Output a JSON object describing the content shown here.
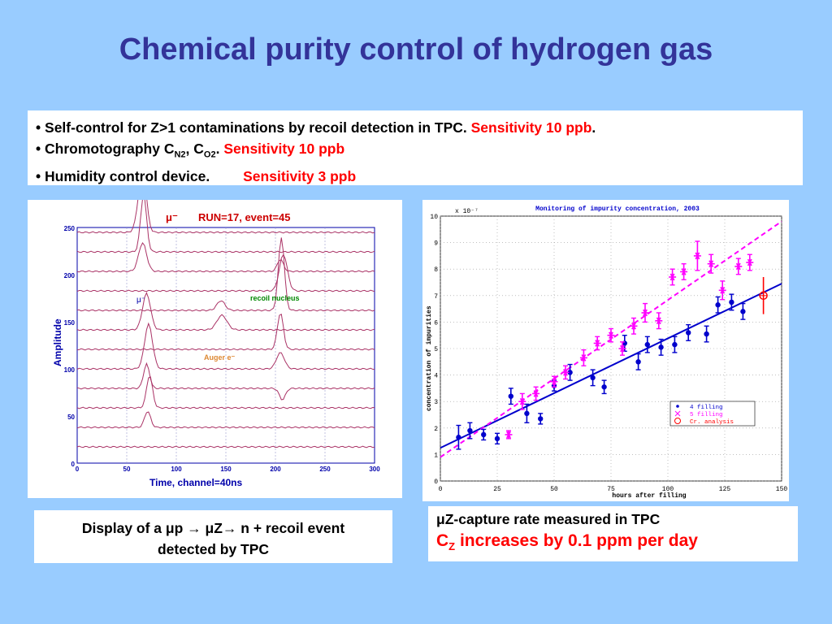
{
  "title": "Chemical purity control of hydrogen gas",
  "bullets": [
    {
      "prefix": "•",
      "text": "Self-control for  Z>1 contaminations by recoil detection in TPC.",
      "sensitivity": "Sensitivity  10 ppb",
      "suffix": "."
    },
    {
      "prefix": "•",
      "text_a": "Chromotography  C",
      "sub_a": "N2",
      "text_b": ", C",
      "sub_b": "O2",
      "text_c": ".",
      "sensitivity": "Sensitivity 10 ppb"
    },
    {
      "prefix": "•",
      "text": " Humidity control device.",
      "sensitivity": "Sensitivity  3 ppb"
    }
  ],
  "left_figure": {
    "header_symbol": "μ⁻",
    "header_run": "RUN=17, event=45",
    "label_mu": "μ⁻",
    "label_recoil": "recoil nucleus",
    "label_auger": "Auger e⁻",
    "ylabel": "Amplitude",
    "xlabel": "Time, channel=40ns",
    "x_ticks": [
      "0",
      "50",
      "100",
      "150",
      "200",
      "250",
      "300"
    ],
    "y_ticks": [
      "0",
      "50",
      "100",
      "150",
      "200",
      "250"
    ]
  },
  "left_caption": {
    "line1": "Display of a μp → μZ→ n + recoil event",
    "line2": "detected by TPC"
  },
  "chart_data": {
    "type": "scatter",
    "title": "Monitoring of impurity concentration, 2003",
    "xlabel": "hours after filling",
    "ylabel": "concentration of impurities",
    "y_multiplier": "x 10⁻⁷",
    "xlim": [
      0,
      150
    ],
    "ylim": [
      0,
      10
    ],
    "x_ticks": [
      0,
      25,
      50,
      75,
      100,
      125,
      150
    ],
    "y_ticks": [
      0,
      1,
      2,
      3,
      4,
      5,
      6,
      7,
      8,
      9,
      10
    ],
    "grid": true,
    "legend_position": "bottom-right",
    "series": [
      {
        "name": "4 filling",
        "color": "#0000cc",
        "marker": "dot",
        "points": [
          [
            8,
            1.65
          ],
          [
            13,
            1.9
          ],
          [
            19,
            1.75
          ],
          [
            25,
            1.6
          ],
          [
            31,
            3.2
          ],
          [
            38,
            2.55
          ],
          [
            44,
            2.35
          ],
          [
            50,
            3.6
          ],
          [
            57,
            4.1
          ],
          [
            67,
            3.9
          ],
          [
            72,
            3.55
          ],
          [
            81,
            5.2
          ],
          [
            87,
            4.5
          ],
          [
            91,
            5.15
          ],
          [
            97,
            5.05
          ],
          [
            103,
            5.15
          ],
          [
            109,
            5.6
          ],
          [
            117,
            5.55
          ],
          [
            122,
            6.65
          ],
          [
            128,
            6.75
          ],
          [
            133,
            6.4
          ]
        ],
        "errors": [
          0.45,
          0.3,
          0.2,
          0.2,
          0.3,
          0.35,
          0.2,
          0.2,
          0.3,
          0.3,
          0.25,
          0.3,
          0.3,
          0.3,
          0.3,
          0.3,
          0.3,
          0.3,
          0.3,
          0.3,
          0.3
        ]
      },
      {
        "name": "5 filling",
        "color": "#ff00ff",
        "marker": "star",
        "points": [
          [
            30,
            1.75
          ],
          [
            36,
            3.0
          ],
          [
            42,
            3.3
          ],
          [
            50,
            3.75
          ],
          [
            55,
            4.1
          ],
          [
            63,
            4.65
          ],
          [
            69,
            5.2
          ],
          [
            75,
            5.5
          ],
          [
            80,
            5.0
          ],
          [
            85,
            5.85
          ],
          [
            90,
            6.35
          ],
          [
            96,
            6.05
          ],
          [
            102,
            7.7
          ],
          [
            107,
            7.9
          ],
          [
            113,
            8.5
          ],
          [
            119,
            8.2
          ],
          [
            124,
            7.2
          ],
          [
            131,
            8.1
          ],
          [
            136,
            8.25
          ]
        ],
        "errors": [
          0.15,
          0.3,
          0.25,
          0.2,
          0.25,
          0.3,
          0.25,
          0.25,
          0.25,
          0.3,
          0.35,
          0.3,
          0.3,
          0.3,
          0.55,
          0.35,
          0.35,
          0.3,
          0.3
        ]
      },
      {
        "name": "Cr. analysis",
        "color": "#ff0000",
        "marker": "circle",
        "points": [
          [
            142,
            7.0
          ]
        ],
        "errors": [
          0.7
        ]
      }
    ],
    "fit_lines": [
      {
        "series": "4 filling",
        "color": "#0000cc",
        "style": "solid",
        "from": [
          0,
          1.25
        ],
        "to": [
          150,
          7.45
        ]
      },
      {
        "series": "5 filling",
        "color": "#ff00ff",
        "style": "dashed",
        "from": [
          0,
          0.9
        ],
        "to": [
          150,
          9.8
        ]
      }
    ]
  },
  "right_caption": {
    "line1": "μZ-capture rate measured in TPC",
    "cz": "C",
    "cz_sub": "Z",
    "line2": "increases by 0.1 ppm per day"
  }
}
